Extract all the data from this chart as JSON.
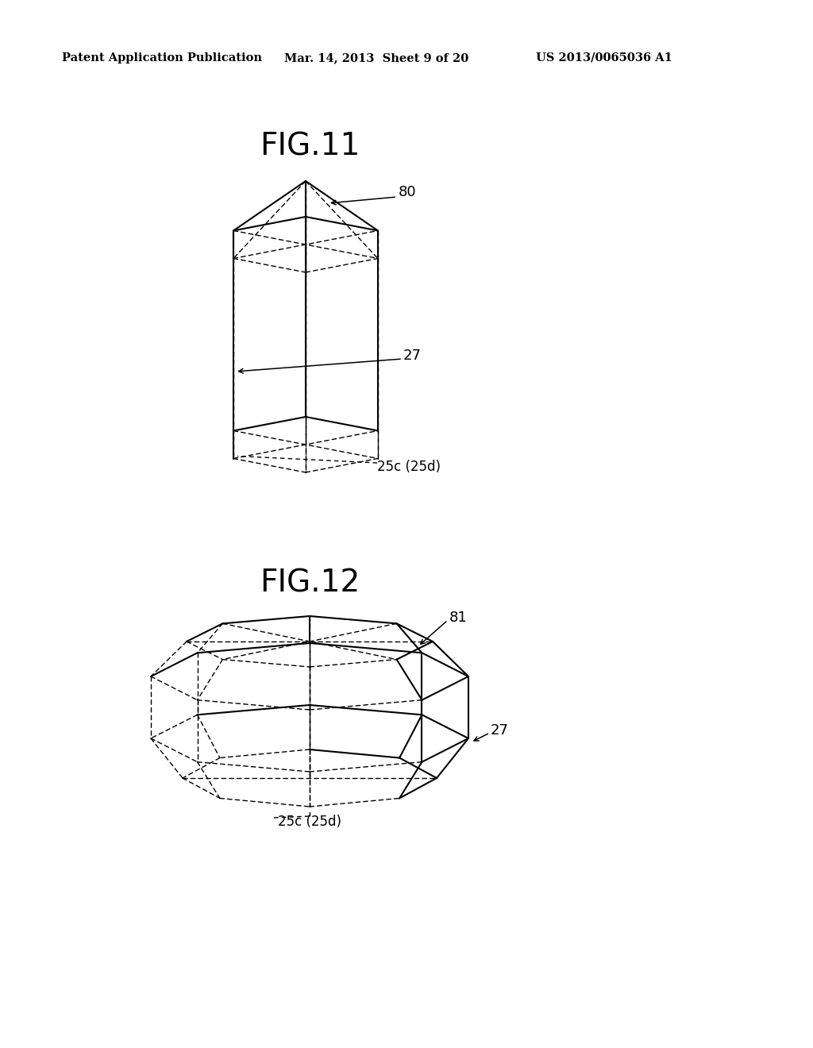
{
  "background_color": "#ffffff",
  "header_left": "Patent Application Publication",
  "header_mid": "Mar. 14, 2013  Sheet 9 of 20",
  "header_right": "US 2013/0065036 A1",
  "fig11_title": "FIG.11",
  "fig12_title": "FIG.12",
  "label_80": "80",
  "label_27_fig11": "27",
  "label_25c_fig11": "25c (25d)",
  "label_81": "81",
  "label_27_fig12": "27",
  "label_25c_fig12": "25c (25d)"
}
